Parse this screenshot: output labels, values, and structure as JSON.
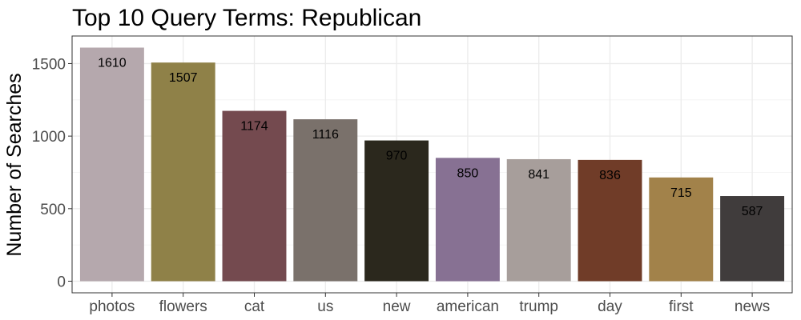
{
  "chart_data": {
    "type": "bar",
    "title": "Top 10 Query Terms: Republican",
    "xlabel": "",
    "ylabel": "Number of Searches",
    "categories": [
      "photos",
      "flowers",
      "cat",
      "us",
      "new",
      "american",
      "trump",
      "day",
      "first",
      "news"
    ],
    "values": [
      1610,
      1507,
      1174,
      1116,
      970,
      850,
      841,
      836,
      715,
      587
    ],
    "colors": [
      "#b5a8ad",
      "#8f8148",
      "#744a4f",
      "#7a716b",
      "#2b281d",
      "#877193",
      "#a79e9b",
      "#703c28",
      "#a2824a",
      "#403c3c"
    ],
    "y_ticks": [
      0,
      500,
      1000,
      1500
    ],
    "ylim": [
      -80,
      1690
    ],
    "grid": true,
    "legend": "none"
  }
}
